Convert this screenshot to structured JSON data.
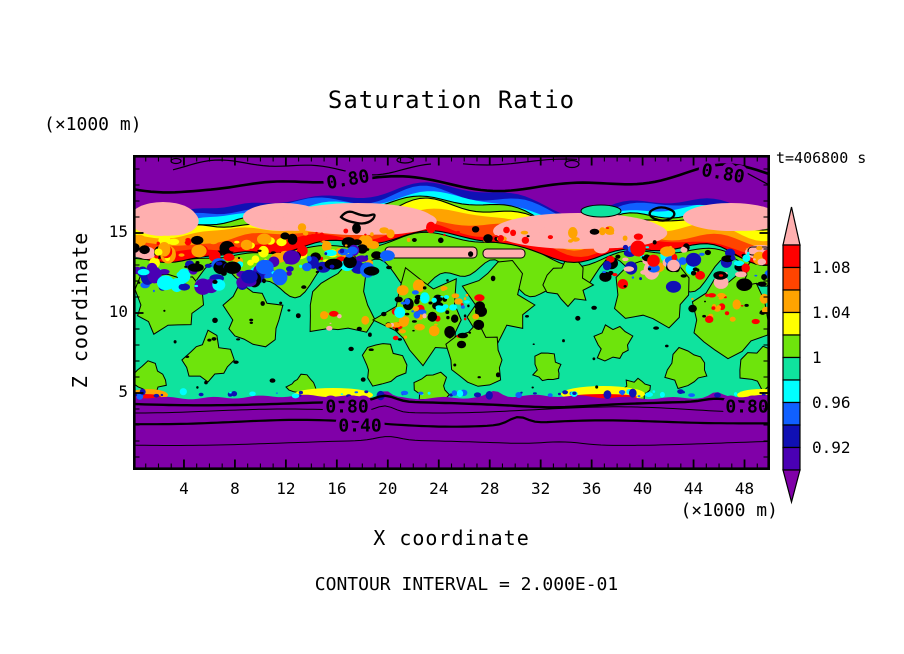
{
  "page": {
    "background": "#FFFFFF"
  },
  "chart_data": {
    "type": "heatmap",
    "variant": "filled-contour-plot",
    "title": "Saturation Ratio",
    "xlabel": "X coordinate",
    "ylabel": "Z coordinate",
    "x_unit_label": "(×1000 m)",
    "y_unit_label": "(×1000 m)",
    "time_annotation": "t=406800 s",
    "contour_interval_annotation": "CONTOUR INTERVAL = 2.000E-01",
    "x_range": [
      0,
      50
    ],
    "x_major_ticks": [
      4,
      8,
      12,
      16,
      20,
      24,
      28,
      32,
      36,
      40,
      44,
      48
    ],
    "x_minor_tick_step": 1,
    "z_range": [
      0.2,
      19.9
    ],
    "z_major_ticks": [
      5,
      10,
      15
    ],
    "z_minor_tick_step": 1,
    "fill_levels": [
      0.9,
      0.92,
      0.94,
      0.96,
      0.98,
      1.0,
      1.02,
      1.04,
      1.06,
      1.08,
      1.1
    ],
    "line_contour_interval": 0.2,
    "line_contour_labels": [
      "0.80",
      "0.40"
    ],
    "palette": {
      "pink": "#FFAFAF",
      "red": "#FF0000",
      "orangered": "#FF4400",
      "orange": "#FFA300",
      "yellow": "#FFFF00",
      "chartreuse": "#6EE40C",
      "springgreen": "#0FE39E",
      "cyan": "#00FFFF",
      "blue": "#1060FF",
      "navy": "#1010B4",
      "indigo": "#4A00B4",
      "purple": "#8000A8",
      "black": "#000000"
    },
    "colorbar": {
      "segment_colors_top_to_bottom": [
        "red",
        "orangered",
        "orange",
        "yellow",
        "chartreuse",
        "springgreen",
        "cyan",
        "blue",
        "navy",
        "indigo"
      ],
      "over_arrow_color": "pink",
      "under_arrow_color": "purple",
      "tick_labels_top_to_bottom": [
        "1.08",
        "1.04",
        "1",
        "0.96",
        "0.92"
      ]
    },
    "field_render": {
      "interface": {
        "base": 45,
        "waves": [
          [
            9,
            85,
            0.8
          ],
          [
            6,
            34,
            2.1
          ],
          [
            3.5,
            15.5,
            5
          ]
        ],
        "bumps": [
          [
            14,
            455,
            28
          ],
          [
            -8,
            180,
            50
          ],
          [
            10,
            90,
            18
          ],
          [
            -9,
            590,
            30
          ]
        ]
      },
      "cloud_bands": [
        [
          "red",
          48
        ],
        [
          "orangered",
          41
        ],
        [
          "orange",
          34
        ],
        [
          "yellow",
          26
        ],
        [
          "chartreuse",
          19
        ],
        [
          "cyan",
          14
        ],
        [
          "blue",
          9
        ],
        [
          "navy",
          4.5
        ],
        [
          "purple",
          0
        ]
      ],
      "chartreuse_band": {
        "top_offset": 50,
        "bottom": {
          "base": 122,
          "waves": [
            [
              14,
              21,
              0.5
            ],
            [
              8,
              9,
              2
            ],
            [
              6,
              53,
              0
            ]
          ]
        }
      },
      "islands": [
        [
          35,
          150,
          40,
          34
        ],
        [
          120,
          165,
          34,
          30
        ],
        [
          75,
          205,
          26,
          22
        ],
        [
          205,
          150,
          40,
          38
        ],
        [
          290,
          165,
          48,
          44
        ],
        [
          250,
          210,
          26,
          22
        ],
        [
          365,
          150,
          38,
          36
        ],
        [
          345,
          205,
          34,
          30
        ],
        [
          300,
          235,
          20,
          14
        ],
        [
          435,
          130,
          26,
          22
        ],
        [
          520,
          140,
          40,
          34
        ],
        [
          595,
          165,
          44,
          40
        ],
        [
          630,
          215,
          26,
          22
        ],
        [
          555,
          215,
          26,
          20
        ],
        [
          480,
          190,
          22,
          18
        ],
        [
          15,
          225,
          20,
          14
        ],
        [
          415,
          215,
          18,
          14
        ],
        [
          505,
          235,
          16,
          10
        ],
        [
          628,
          120,
          18,
          14
        ],
        [
          168,
          232,
          16,
          10
        ]
      ],
      "pink_blobs": [
        [
          30,
          64,
          34,
          17
        ],
        [
          150,
          62,
          40,
          14
        ],
        [
          225,
          64,
          75,
          16
        ],
        [
          445,
          76,
          85,
          18
        ],
        [
          598,
          62,
          48,
          14
        ],
        [
          628,
          97,
          16,
          7
        ],
        [
          10,
          97,
          12,
          6
        ]
      ],
      "pink_strips": [
        [
          252,
          92,
          92,
          11
        ],
        [
          350,
          94,
          42,
          9
        ],
        [
          615,
          92,
          22,
          8
        ]
      ],
      "teal_patch": [
        468,
        56,
        20,
        6
      ],
      "squiggles": [
        "M208,62q6,-8 14,-4q10,4 16,2q6,-2 2,4q-6,6 -16,4q-12,-2 -16,-6z",
        "M518,56q8,-6 18,-2q8,3 4,8q-8,6 -18,2q-8,-4 -4,-8z"
      ],
      "clusters": [
        {
          "x0": 0,
          "x1": 255,
          "y": 96,
          "jitter": 12,
          "n": 70,
          "max": 7,
          "seed": 11,
          "colors": [
            "red",
            "orange",
            "yellow",
            "black"
          ]
        },
        {
          "x0": 0,
          "x1": 255,
          "y": 128,
          "slope": -0.1,
          "jitter": 13,
          "n": 95,
          "max": 8,
          "seed": 22,
          "colors": [
            "blue",
            "navy",
            "cyan",
            "indigo",
            "black"
          ]
        },
        {
          "x0": 150,
          "x1": 540,
          "y": 80,
          "jitter": 8,
          "n": 45,
          "max": 4,
          "seed": 33,
          "colors": [
            "black",
            "red",
            "orange"
          ]
        },
        {
          "x0": 262,
          "x1": 348,
          "y": 162,
          "jitter": 32,
          "n": 50,
          "max": 5,
          "seed": 44,
          "colors": [
            "black",
            "black",
            "red",
            "orange"
          ]
        },
        {
          "x0": 252,
          "x1": 335,
          "y": 148,
          "jitter": 12,
          "n": 18,
          "max": 5,
          "seed": 55,
          "colors": [
            "cyan",
            "blue"
          ]
        },
        {
          "x0": 468,
          "x1": 637,
          "y": 112,
          "jitter": 20,
          "n": 85,
          "max": 7,
          "seed": 66,
          "colors": [
            "black",
            "blue",
            "red",
            "orange",
            "pink",
            "navy",
            "cyan"
          ]
        },
        {
          "x0": 555,
          "x1": 637,
          "y": 155,
          "jitter": 15,
          "n": 25,
          "max": 4,
          "seed": 77,
          "colors": [
            "red",
            "orange",
            "black"
          ]
        },
        {
          "x0": 0,
          "x1": 637,
          "y": 165,
          "jitter": 70,
          "n": 55,
          "max": 2,
          "seed": 88,
          "colors": [
            "black"
          ]
        },
        {
          "x0": 0,
          "x1": 637,
          "y": 239,
          "jitter": 2.5,
          "n": 60,
          "max": 3,
          "seed": 99,
          "colors": [
            "blue",
            "cyan",
            "navy"
          ]
        },
        {
          "x0": 180,
          "x1": 300,
          "y": 168,
          "jitter": 10,
          "n": 18,
          "max": 4,
          "seed": 101,
          "colors": [
            "orange",
            "red",
            "pink",
            "black"
          ]
        }
      ],
      "humps": [
        [
          200,
          240,
          40,
          7,
          "yellow"
        ],
        [
          470,
          239,
          42,
          8,
          "yellow"
        ],
        [
          628,
          240,
          24,
          6,
          "yellow"
        ],
        [
          15,
          240,
          20,
          6,
          "orange"
        ],
        [
          470,
          242,
          34,
          3,
          "red"
        ],
        [
          12,
          242,
          16,
          3,
          "red"
        ]
      ],
      "bottom_top": {
        "base": 242,
        "waves": [
          [
            1.2,
            37,
            0
          ],
          [
            1.1,
            7.3,
            0
          ]
        ],
        "bumps": [
          [
            -7,
            252,
            5
          ],
          [
            -5,
            362,
            6
          ],
          [
            -4,
            583,
            5
          ]
        ]
      },
      "bottom_lines": [
        {
          "base": 248.5,
          "w": 2.4,
          "waves": [
            [
              1.8,
              55,
              0.3
            ]
          ],
          "bumps": [
            [
              -6,
              252,
              10
            ],
            [
              -3,
              583,
              12
            ],
            [
              2,
              420,
              30
            ]
          ]
        },
        {
          "base": 256,
          "w": 1,
          "waves": [
            [
              2,
              48,
              1.5
            ]
          ],
          "bumps": [
            [
              -6,
              252,
              9
            ],
            [
              -3,
              520,
              60
            ]
          ]
        },
        {
          "base": 268,
          "w": 2.2,
          "waves": [
            [
              2.2,
              62,
              2.6
            ],
            [
              1.5,
              40,
              0
            ]
          ],
          "bumps": [
            [
              -7,
              385,
              9
            ]
          ]
        },
        {
          "base": 288,
          "w": 1,
          "waves": [
            [
              2.5,
              70,
              1
            ]
          ],
          "bumps": [
            [
              -4,
              255,
              12
            ],
            [
              -3,
              430,
              20
            ]
          ]
        }
      ],
      "top_line": {
        "base": 28,
        "width": 2.6,
        "waves": [
          [
            5,
            60,
            1.2
          ],
          [
            4,
            26,
            0.4
          ]
        ],
        "bumps": [
          [
            -10,
            585,
            40
          ],
          [
            6,
            100,
            30
          ]
        ]
      },
      "thin_top_lines": [
        {
          "x0": 40,
          "x1": 300,
          "base": 12,
          "waves": [
            [
              5,
              40,
              2
            ],
            [
              3,
              17,
              0
            ]
          ]
        },
        {
          "x0": 330,
          "x1": 445,
          "base": 7,
          "waves": [
            [
              3,
              25,
              0
            ]
          ]
        },
        {
          "x0": 612,
          "x1": 637,
          "base": 16,
          "slope": 0.55,
          "waves": [
            [
              1,
              30,
              0
            ]
          ]
        }
      ],
      "loops": [
        [
          43,
          6,
          5,
          2.5
        ],
        [
          272,
          5,
          8,
          3
        ],
        [
          439,
          9,
          7,
          3.5
        ]
      ],
      "contour_label_positions": [
        {
          "text": "0.80",
          "x": 215,
          "y": 25,
          "rot": -10
        },
        {
          "text": "0.80",
          "x": 590,
          "y": 19,
          "rot": 10
        },
        {
          "text": "0.80",
          "x": 214,
          "y": 252
        },
        {
          "text": "0.40",
          "x": 227,
          "y": 271
        },
        {
          "text": "0.80",
          "x": 614,
          "y": 252
        }
      ]
    }
  }
}
